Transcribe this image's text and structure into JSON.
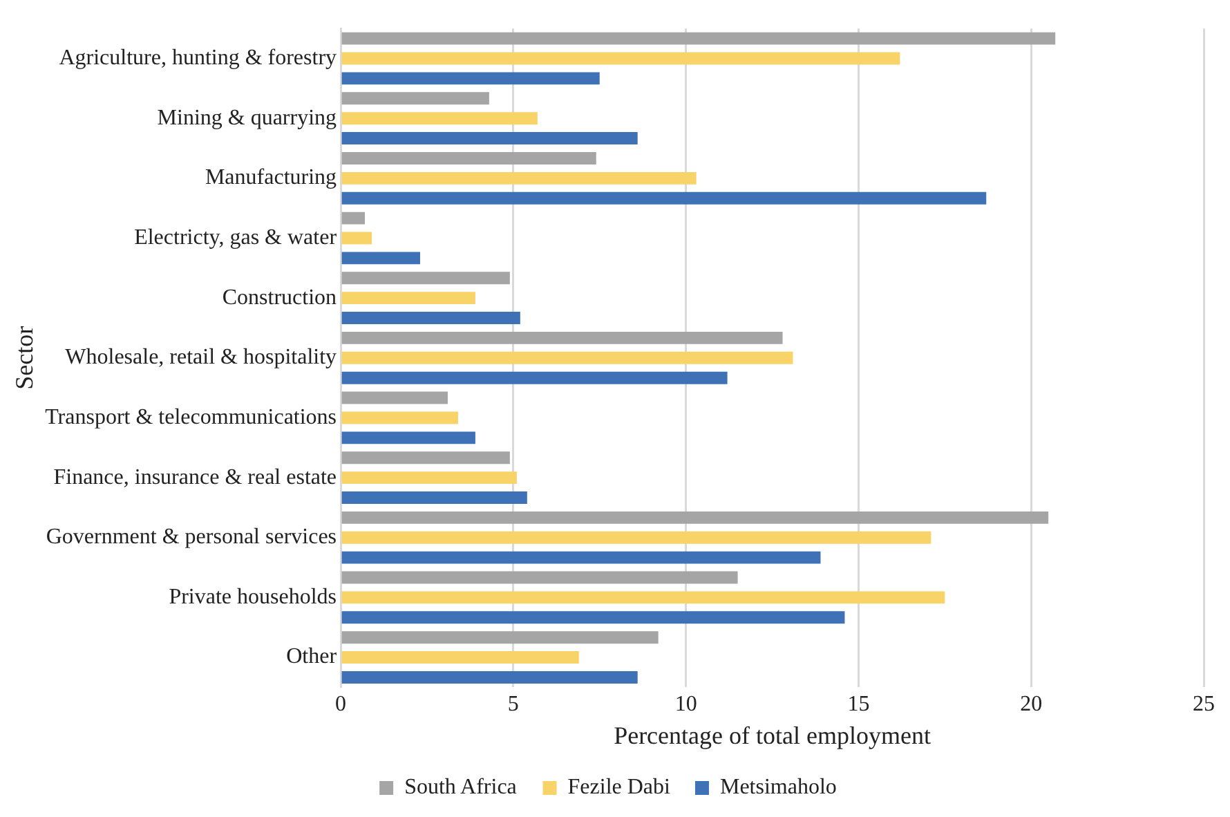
{
  "chart_data": {
    "type": "bar",
    "orientation": "horizontal",
    "xlabel": "Percentage of total employment",
    "ylabel": "Sector",
    "categories": [
      "Agriculture, hunting & forestry",
      "Mining & quarrying",
      "Manufacturing",
      "Electricty, gas & water",
      "Construction",
      "Wholesale, retail & hospitality",
      "Transport & telecommunications",
      "Finance, insurance & real estate",
      "Government & personal services",
      "Private households",
      "Other"
    ],
    "series": [
      {
        "name": "South Africa",
        "color": "#a5a5a5",
        "values": [
          20.7,
          4.3,
          7.4,
          0.7,
          4.9,
          12.8,
          3.1,
          4.9,
          20.5,
          11.5,
          9.2
        ]
      },
      {
        "name": "Fezile Dabi",
        "color": "#f7d368",
        "values": [
          16.2,
          5.7,
          10.3,
          0.9,
          3.9,
          13.1,
          3.4,
          5.1,
          17.1,
          17.5,
          6.9
        ]
      },
      {
        "name": "Metsimaholo",
        "color": "#3f71b7",
        "values": [
          7.5,
          8.6,
          18.7,
          2.3,
          5.2,
          11.2,
          3.9,
          5.4,
          13.9,
          14.6,
          8.6
        ]
      }
    ],
    "xlim": [
      0,
      25
    ],
    "xticks": [
      0,
      5,
      10,
      15,
      20,
      25
    ],
    "grid": "x",
    "legend": "bottom"
  }
}
